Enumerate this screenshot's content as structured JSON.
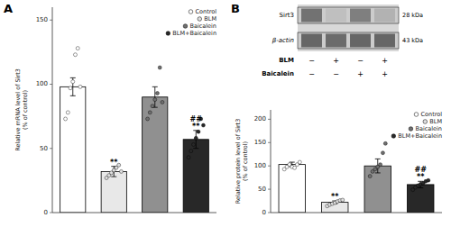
{
  "chart_data": [
    {
      "type": "bar",
      "title": "A",
      "categories": [
        "Control",
        "BLM",
        "Baicalein",
        "BLM+Baicalein"
      ],
      "values": [
        98,
        32,
        90,
        57
      ],
      "errors": [
        7,
        4,
        8,
        7
      ],
      "colors": [
        "white",
        "#e8e8e8",
        "#909090",
        "#282828"
      ],
      "points": [
        [
          73,
          78,
          97,
          102,
          123,
          128,
          98
        ],
        [
          27,
          29,
          31,
          33,
          35,
          37,
          32
        ],
        [
          73,
          78,
          83,
          88,
          93,
          113,
          86
        ],
        [
          43,
          48,
          53,
          58,
          63,
          73,
          68
        ]
      ],
      "point_colors": [
        "white",
        "#e0e0e0",
        "#707070",
        "#282828"
      ],
      "ylabel": "Relative mRNA level of Sirt3\n(% of control)",
      "ylim": [
        0,
        160
      ],
      "yticks": [
        0,
        50,
        100,
        150
      ],
      "annotations": [
        {
          "category": "BLM",
          "text": "**"
        },
        {
          "category": "BLM+Baicalein",
          "text": "**"
        },
        {
          "category": "BLM+Baicalein",
          "text": "##"
        }
      ],
      "legend": "upper right",
      "grid": false,
      "tick_labels": "y"
    },
    {
      "type": "bar",
      "title": "B",
      "categories": [
        "Control",
        "BLM",
        "Baicalein",
        "BLM+Baicalein"
      ],
      "values": [
        103,
        22,
        100,
        60
      ],
      "errors": [
        5,
        3,
        15,
        7
      ],
      "colors": [
        "white",
        "#e8e8e8",
        "#909090",
        "#282828"
      ],
      "points": [
        [
          93,
          98,
          103,
          98,
          96,
          103,
          108
        ],
        [
          14,
          17,
          19,
          21,
          24,
          26,
          27
        ],
        [
          78,
          88,
          93,
          98,
          103,
          128,
          148
        ],
        [
          49,
          54,
          58,
          61,
          63,
          67,
          69
        ]
      ],
      "point_colors": [
        "white",
        "#e0e0e0",
        "#707070",
        "#282828"
      ],
      "ylabel": "Relative protein level of Sirt3\n(% of control)",
      "ylim": [
        0,
        220
      ],
      "yticks": [
        0,
        50,
        100,
        150,
        200
      ],
      "annotations": [
        {
          "category": "BLM",
          "text": "**"
        },
        {
          "category": "BLM+Baicalein",
          "text": "**"
        },
        {
          "category": "BLM+Baicalein",
          "text": "##"
        }
      ],
      "legend": "upper right",
      "grid": false,
      "tick_labels": "y"
    },
    {
      "type": "blot",
      "rows": [
        "Sirt3",
        "β-actin"
      ],
      "row_notes": [
        "28 kDa",
        "43 kDa"
      ],
      "cells": [
        [
          0.55,
          0.25,
          0.5,
          0.3
        ],
        [
          0.6,
          0.58,
          0.6,
          0.6
        ]
      ],
      "lane_rows": [
        {
          "name": "BLM",
          "labels": [
            "−",
            "+",
            "−",
            "+"
          ]
        },
        {
          "name": "Baicalein",
          "labels": [
            "−",
            "−",
            "+",
            "+"
          ]
        }
      ]
    }
  ]
}
